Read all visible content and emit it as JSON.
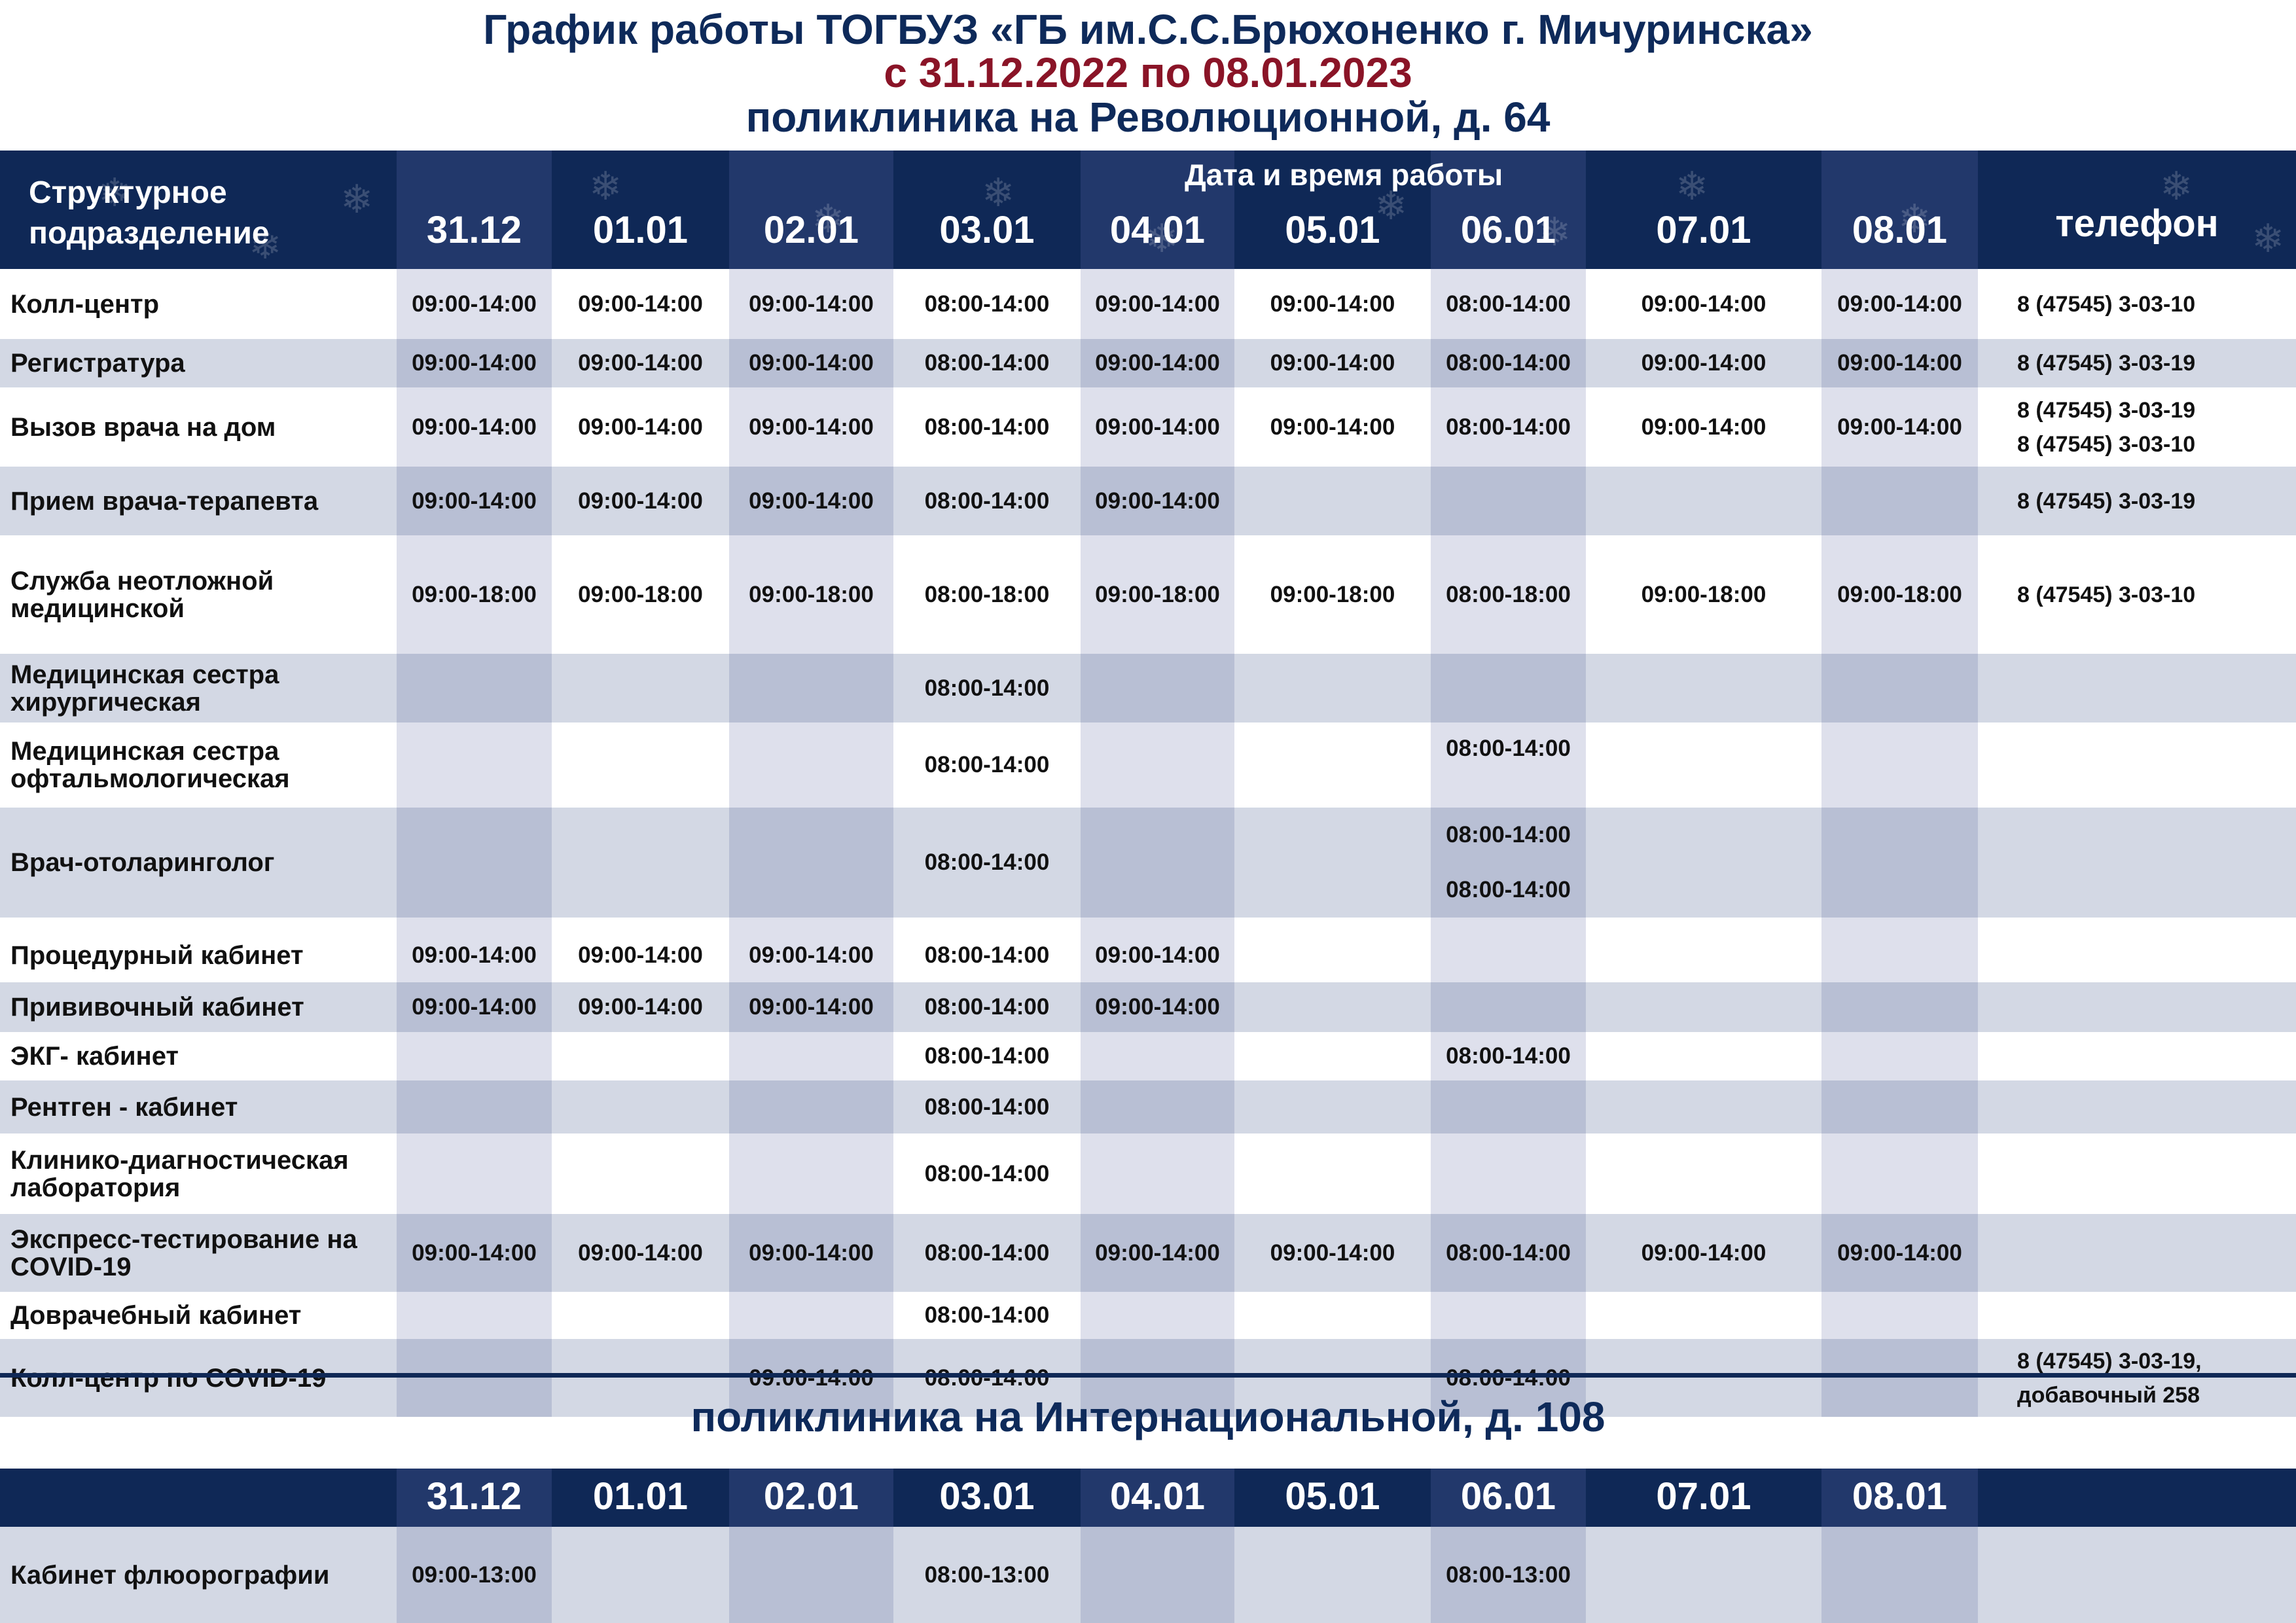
{
  "header": {
    "title": "График работы ТОГБУЗ «ГБ им.С.С.Брюхоненко г. Мичуринска»",
    "period": "с 31.12.2022 по 08.01.2023",
    "clinic1": "поликлиника на Революционной, д. 64",
    "clinic2": "поликлиника на Интернациональной, д. 108"
  },
  "colors": {
    "navy": "#0f2856",
    "title_red": "#8a1427",
    "band": "#d3d8e4",
    "band_shaded": "#b8bfd4",
    "white_shaded": "#dee0ec"
  },
  "table1": {
    "structure_label": "Структурное подразделение",
    "dates_label": "Дата и время работы",
    "phone_label": "телефон",
    "dates": [
      "31.12",
      "01.01",
      "02.01",
      "03.01",
      "04.01",
      "05.01",
      "06.01",
      "07.01",
      "08.01"
    ],
    "rows": [
      {
        "name": "Колл-центр",
        "cells": [
          "09:00-14:00",
          "09:00-14:00",
          "09:00-14:00",
          "08:00-14:00",
          "09:00-14:00",
          "09:00-14:00",
          "08:00-14:00",
          "09:00-14:00",
          "09:00-14:00"
        ],
        "phone": [
          "8  (47545) 3-03-10"
        ]
      },
      {
        "name": "Регистратура",
        "cells": [
          "09:00-14:00",
          "09:00-14:00",
          "09:00-14:00",
          "08:00-14:00",
          "09:00-14:00",
          "09:00-14:00",
          "08:00-14:00",
          "09:00-14:00",
          "09:00-14:00"
        ],
        "phone": [
          "8  (47545) 3-03-19"
        ]
      },
      {
        "name": "Вызов врача на дом",
        "cells": [
          "09:00-14:00",
          "09:00-14:00",
          "09:00-14:00",
          "08:00-14:00",
          "09:00-14:00",
          "09:00-14:00",
          "08:00-14:00",
          "09:00-14:00",
          "09:00-14:00"
        ],
        "phone": [
          "8  (47545) 3-03-19",
          "8  (47545) 3-03-10"
        ]
      },
      {
        "name": "Прием врача-терапевта",
        "cells": [
          "09:00-14:00",
          "09:00-14:00",
          "09:00-14:00",
          "08:00-14:00",
          "09:00-14:00",
          "",
          "",
          "",
          ""
        ],
        "phone": [
          "8  (47545) 3-03-19"
        ]
      },
      {
        "name": "Служба неотложной медицинской",
        "cells": [
          "09:00-18:00",
          "09:00-18:00",
          "09:00-18:00",
          "08:00-18:00",
          "09:00-18:00",
          "09:00-18:00",
          "08:00-18:00",
          "09:00-18:00",
          "09:00-18:00"
        ],
        "phone": [
          "8  (47545) 3-03-10"
        ]
      },
      {
        "name": "Медицинская сестра хирургическая",
        "cells": [
          "",
          "",
          "",
          "08:00-14:00",
          "",
          "",
          "",
          "",
          ""
        ],
        "phone": []
      },
      {
        "name": "Медицинская сестра офтальмологическая",
        "cells": [
          "",
          "",
          "",
          "08:00-14:00",
          "",
          "",
          [
            "08:00-14:00"
          ],
          "",
          ""
        ],
        "phone": []
      },
      {
        "name": "Врач-отоларинголог",
        "cells": [
          "",
          "",
          "",
          "08:00-14:00",
          "",
          "",
          [
            "08:00-14:00",
            "08:00-14:00"
          ],
          "",
          ""
        ],
        "phone": []
      },
      {
        "gap": true
      },
      {
        "name": "Процедурный кабинет",
        "cells": [
          "09:00-14:00",
          "09:00-14:00",
          "09:00-14:00",
          "08:00-14:00",
          "09:00-14:00",
          "",
          "",
          "",
          ""
        ],
        "phone": []
      },
      {
        "name": "Прививочный кабинет",
        "cells": [
          "09:00-14:00",
          "09:00-14:00",
          "09:00-14:00",
          "08:00-14:00",
          "09:00-14:00",
          "",
          "",
          "",
          ""
        ],
        "phone": []
      },
      {
        "name": "ЭКГ- кабинет",
        "cells": [
          "",
          "",
          "",
          "08:00-14:00",
          "",
          "",
          "08:00-14:00",
          "",
          ""
        ],
        "phone": []
      },
      {
        "name": "Рентген - кабинет",
        "cells": [
          "",
          "",
          "",
          "08:00-14:00",
          "",
          "",
          "",
          "",
          ""
        ],
        "phone": []
      },
      {
        "name": "Клинико-диагностическая лаборатория",
        "cells": [
          "",
          "",
          "",
          "08:00-14:00",
          "",
          "",
          "",
          "",
          ""
        ],
        "phone": []
      },
      {
        "name": "Экспресс-тестирование на COVID-19",
        "cells": [
          "09:00-14:00",
          "09:00-14:00",
          "09:00-14:00",
          "08:00-14:00",
          "09:00-14:00",
          "09:00-14:00",
          "08:00-14:00",
          "09:00-14:00",
          "09:00-14:00"
        ],
        "phone": []
      },
      {
        "name": "Доврачебный кабинет",
        "cells": [
          "",
          "",
          "",
          "08:00-14:00",
          "",
          "",
          "",
          "",
          ""
        ],
        "phone": []
      },
      {
        "name": "Колл-центр по COVID-19",
        "cells": [
          "",
          "",
          "09:00-14:00",
          "08:00-14:00",
          "",
          "",
          "08:00-14:00",
          "",
          ""
        ],
        "phone": [
          "8  (47545) 3-03-19,",
          "добавочный 258"
        ]
      }
    ]
  },
  "table2": {
    "dates": [
      "31.12",
      "01.01",
      "02.01",
      "03.01",
      "04.01",
      "05.01",
      "06.01",
      "07.01",
      "08.01"
    ],
    "rows": [
      {
        "name": "Кабинет флюорографии",
        "cells": [
          "09:00-13:00",
          "",
          "",
          "08:00-13:00",
          "",
          "",
          "08:00-13:00",
          "",
          ""
        ],
        "phone": []
      }
    ]
  }
}
